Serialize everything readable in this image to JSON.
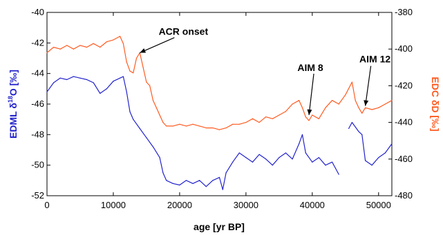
{
  "chart_data": {
    "type": "line",
    "xlabel": "age [yr BP]",
    "xlim": [
      0,
      52000
    ],
    "xticks": [
      0,
      10000,
      20000,
      30000,
      40000,
      50000
    ],
    "xtick_labels": [
      "0",
      "10000",
      "20000",
      "30000",
      "40000",
      "50000"
    ],
    "y_left": {
      "label_parts": [
        "EDML δ",
        "18",
        "O [‰]"
      ],
      "range": [
        -52,
        -40
      ],
      "ticks": [
        -52,
        -50,
        -48,
        -46,
        -44,
        -42,
        -40
      ],
      "tick_labels": [
        "-52",
        "-50",
        "-48",
        "-46",
        "-44",
        "-42",
        "-40"
      ],
      "color": "#2222cc"
    },
    "y_right": {
      "label": "EDC δD [‰]",
      "range": [
        -480,
        -380
      ],
      "ticks": [
        -480,
        -460,
        -440,
        -420,
        -400,
        -380
      ],
      "tick_labels": [
        "-480",
        "-460",
        "-440",
        "-420",
        "-400",
        "-380"
      ],
      "color": "#ff5a1f"
    },
    "grid": false,
    "series": [
      {
        "axis": "right",
        "color": "#ff5a1f",
        "x": [
          0,
          1000,
          2000,
          3000,
          4000,
          5000,
          6000,
          7000,
          8000,
          9000,
          10000,
          11000,
          11500,
          12000,
          12500,
          13000,
          13500,
          14000,
          14500,
          15000,
          15500,
          16000,
          16500,
          17000,
          17500,
          18000,
          19000,
          20000,
          21000,
          22000,
          23000,
          24000,
          25000,
          26000,
          27000,
          28000,
          29000,
          30000,
          31000,
          32000,
          33000,
          34000,
          35000,
          36000,
          37000,
          38000,
          38500,
          39000,
          39500,
          40000,
          41000,
          42000,
          43000,
          44000,
          45000,
          46000,
          46500,
          47000,
          47500,
          48000,
          49000,
          50000,
          51000,
          52000
        ],
        "values": [
          -402,
          -399,
          -400,
          -398,
          -400,
          -398,
          -399,
          -397,
          -399,
          -396,
          -395,
          -393,
          -397,
          -407,
          -412,
          -413,
          -405,
          -402,
          -410,
          -418,
          -420,
          -428,
          -432,
          -436,
          -440,
          -442,
          -442,
          -441,
          -442,
          -441,
          -442,
          -443,
          -443,
          -444,
          -443,
          -441,
          -441,
          -440,
          -438,
          -440,
          -437,
          -438,
          -436,
          -434,
          -430,
          -428,
          -432,
          -437,
          -439,
          -436,
          -438,
          -432,
          -428,
          -430,
          -425,
          -418,
          -428,
          -432,
          -435,
          -432,
          -433,
          -432,
          -430,
          -428
        ]
      },
      {
        "axis": "left",
        "color": "#2222cc",
        "x": [
          0,
          1000,
          2000,
          3000,
          4000,
          5000,
          6000,
          7000,
          8000,
          9000,
          10000,
          11000,
          11500,
          12000,
          12500,
          13000,
          14000,
          15000,
          16000,
          17000,
          17500,
          18000,
          19000,
          20000,
          21000,
          22000,
          23000,
          24000,
          25000,
          26000,
          26500,
          27000,
          28000,
          29000,
          30000,
          31000,
          32000,
          33000,
          34000,
          35000,
          36000,
          37000,
          38000,
          38500,
          39000,
          40000,
          41000,
          42000,
          43000,
          44000,
          null,
          45500,
          46000,
          47000,
          47500,
          48000,
          49000,
          50000,
          51000,
          52000
        ],
        "values": [
          -45.2,
          -44.6,
          -44.3,
          -44.4,
          -44.2,
          -44.3,
          -44.4,
          -44.6,
          -45.3,
          -45.0,
          -44.5,
          -44.3,
          -44.2,
          -45.2,
          -46.5,
          -47.0,
          -47.6,
          -48.2,
          -48.8,
          -49.5,
          -50.5,
          -51.0,
          -51.2,
          -51.3,
          -51.0,
          -51.2,
          -51.0,
          -51.4,
          -51.0,
          -50.8,
          -51.6,
          -50.5,
          -49.8,
          -49.2,
          -49.5,
          -49.8,
          -49.3,
          -49.6,
          -50.0,
          -49.5,
          -49.2,
          -49.6,
          -48.6,
          -48.0,
          -49.2,
          -49.8,
          -49.5,
          -50.0,
          -49.8,
          -50.6,
          null,
          -47.6,
          -47.2,
          -47.8,
          -48.0,
          -49.7,
          -50.0,
          -49.5,
          -49.2,
          -48.6
        ]
      }
    ],
    "annotations": [
      {
        "text": "ACR onset",
        "x": 14000,
        "y": -402,
        "axis": "right"
      },
      {
        "text": "AIM 8",
        "x": 39500,
        "y": -436,
        "axis": "right"
      },
      {
        "text": "AIM 12",
        "x": 48000,
        "y": -431,
        "axis": "right"
      }
    ]
  }
}
